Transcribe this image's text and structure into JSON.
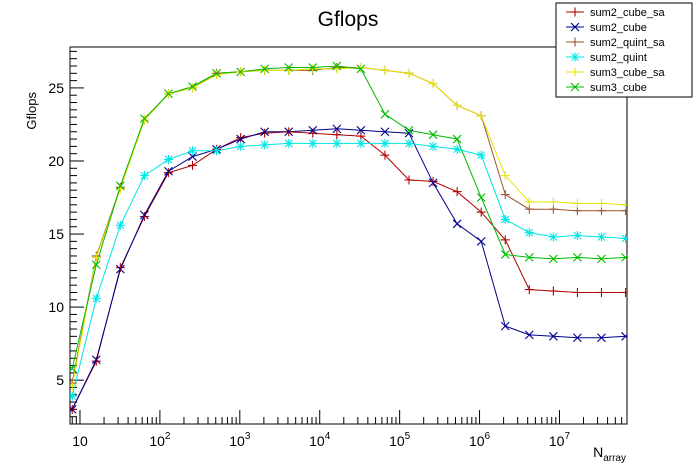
{
  "chart_data": {
    "type": "line",
    "title": "Gflops",
    "xlabel": "N",
    "xlabel_sub": "array",
    "ylabel": "Gflops",
    "x_scale": "log",
    "xlim": [
      7.5,
      70000000
    ],
    "ylim": [
      2.0,
      27.8
    ],
    "y_ticks": [
      5,
      10,
      15,
      20,
      25
    ],
    "x_ticks": [
      {
        "value": 10,
        "base": "10",
        "exp": ""
      },
      {
        "value": 100,
        "base": "10",
        "exp": "2"
      },
      {
        "value": 1000,
        "base": "10",
        "exp": "3"
      },
      {
        "value": 10000,
        "base": "10",
        "exp": "4"
      },
      {
        "value": 100000,
        "base": "10",
        "exp": "5"
      },
      {
        "value": 1000000,
        "base": "10",
        "exp": "6"
      },
      {
        "value": 10000000,
        "base": "10",
        "exp": "7"
      }
    ],
    "grid": false,
    "legend_position": "top-right",
    "x": [
      8,
      16,
      32,
      64,
      128,
      256,
      512,
      1024,
      2048,
      4096,
      8192,
      16384,
      32768,
      65536,
      131072,
      262144,
      524288,
      1048576,
      2097152,
      4194304,
      8388608,
      16777216,
      33554432,
      67108864
    ],
    "series": [
      {
        "name": "sum2_cube_sa",
        "color": "#b00000",
        "marker": "plus",
        "values": [
          3.0,
          6.3,
          12.7,
          16.2,
          19.2,
          19.7,
          20.8,
          21.6,
          21.9,
          22.0,
          21.9,
          21.8,
          21.7,
          20.4,
          18.7,
          18.6,
          17.9,
          16.5,
          14.6,
          11.2,
          11.1,
          11.0,
          11.0,
          11.0
        ]
      },
      {
        "name": "sum2_cube",
        "color": "#00008b",
        "marker": "cross",
        "values": [
          3.0,
          6.4,
          12.6,
          16.3,
          19.3,
          20.3,
          20.8,
          21.5,
          22.0,
          22.0,
          22.1,
          22.2,
          22.1,
          22.0,
          21.9,
          18.5,
          15.7,
          14.5,
          8.7,
          8.1,
          8.0,
          7.9,
          7.9,
          8.0
        ]
      },
      {
        "name": "sum2_quint_sa",
        "color": "#a0522d",
        "marker": "plus",
        "values": [
          4.8,
          13.5,
          18.2,
          22.8,
          24.6,
          25.0,
          26.0,
          26.1,
          26.2,
          26.2,
          26.2,
          26.4,
          26.4,
          26.2,
          26.0,
          25.3,
          23.8,
          23.1,
          17.7,
          16.7,
          16.7,
          16.6,
          16.6,
          16.6
        ]
      },
      {
        "name": "sum2_quint",
        "color": "#00e5e5",
        "marker": "star",
        "values": [
          3.9,
          10.6,
          15.6,
          19.0,
          20.1,
          20.7,
          20.7,
          21.0,
          21.1,
          21.2,
          21.2,
          21.2,
          21.2,
          21.2,
          21.2,
          21.0,
          20.8,
          20.4,
          16.0,
          15.1,
          14.8,
          14.9,
          14.8,
          14.7
        ]
      },
      {
        "name": "sum3_cube_sa",
        "color": "#e5e500",
        "marker": "plus",
        "values": [
          4.6,
          13.4,
          18.1,
          22.8,
          24.6,
          25.0,
          25.9,
          26.1,
          26.2,
          26.2,
          26.3,
          26.3,
          26.4,
          26.2,
          26.0,
          25.3,
          23.8,
          23.1,
          19.0,
          17.2,
          17.2,
          17.1,
          17.1,
          17.0
        ]
      },
      {
        "name": "sum3_cube",
        "color": "#00bb00",
        "marker": "cross",
        "values": [
          5.8,
          12.9,
          18.3,
          22.9,
          24.6,
          25.1,
          26.0,
          26.1,
          26.3,
          26.4,
          26.4,
          26.5,
          26.3,
          23.2,
          22.1,
          21.8,
          21.5,
          17.5,
          13.6,
          13.4,
          13.3,
          13.4,
          13.3,
          13.4
        ]
      }
    ]
  }
}
